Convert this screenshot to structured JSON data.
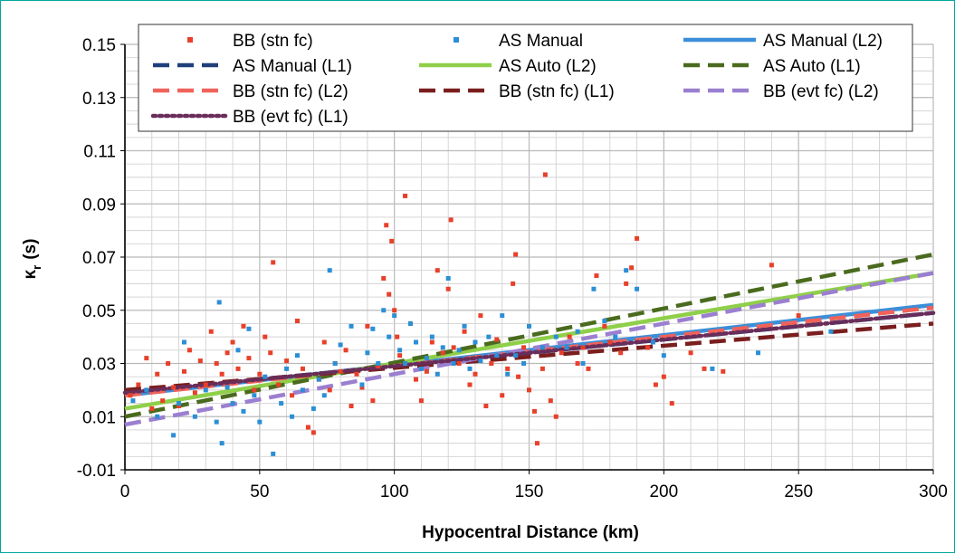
{
  "chart_data": {
    "type": "scatter",
    "title": "",
    "xlabel": "Hypocentral Distance (km)",
    "ylabel": "κ",
    "ylabel_sub": "r",
    "ylabel_unit": "(s)",
    "xlim": [
      0,
      300
    ],
    "ylim": [
      -0.01,
      0.15
    ],
    "xticks": [
      0,
      50,
      100,
      150,
      200,
      250,
      300
    ],
    "yticks": [
      "0.15",
      "0.13",
      "0.11",
      "0.09",
      "0.07",
      "0.05",
      "0.03",
      "0.01",
      "-0.01"
    ],
    "ytick_values": [
      0.15,
      0.13,
      0.11,
      0.09,
      0.07,
      0.05,
      0.03,
      0.01,
      -0.01
    ],
    "grid": true,
    "legend_position": "top",
    "series": [
      {
        "name": "BB (stn fc)",
        "kind": "scatter",
        "color": "#e8402a",
        "points": [
          [
            2,
            0.018
          ],
          [
            5,
            0.022
          ],
          [
            8,
            0.032
          ],
          [
            10,
            0.013
          ],
          [
            12,
            0.026
          ],
          [
            14,
            0.016
          ],
          [
            16,
            0.03
          ],
          [
            18,
            0.021
          ],
          [
            20,
            0.014
          ],
          [
            22,
            0.027
          ],
          [
            24,
            0.035
          ],
          [
            26,
            0.019
          ],
          [
            28,
            0.031
          ],
          [
            30,
            0.022
          ],
          [
            32,
            0.042
          ],
          [
            34,
            0.03
          ],
          [
            36,
            0.026
          ],
          [
            38,
            0.034
          ],
          [
            40,
            0.038
          ],
          [
            42,
            0.028
          ],
          [
            44,
            0.044
          ],
          [
            46,
            0.032
          ],
          [
            48,
            0.02
          ],
          [
            50,
            0.026
          ],
          [
            52,
            0.04
          ],
          [
            54,
            0.034
          ],
          [
            55,
            0.068
          ],
          [
            57,
            0.022
          ],
          [
            60,
            0.031
          ],
          [
            62,
            0.018
          ],
          [
            64,
            0.046
          ],
          [
            66,
            0.028
          ],
          [
            68,
            0.006
          ],
          [
            70,
            0.004
          ],
          [
            72,
            0.024
          ],
          [
            74,
            0.038
          ],
          [
            76,
            0.02
          ],
          [
            78,
            0.03
          ],
          [
            80,
            0.027
          ],
          [
            82,
            0.035
          ],
          [
            84,
            0.014
          ],
          [
            86,
            0.026
          ],
          [
            88,
            0.021
          ],
          [
            90,
            0.044
          ],
          [
            92,
            0.016
          ],
          [
            94,
            0.029
          ],
          [
            96,
            0.062
          ],
          [
            97,
            0.082
          ],
          [
            98,
            0.056
          ],
          [
            99,
            0.076
          ],
          [
            100,
            0.05
          ],
          [
            101,
            0.04
          ],
          [
            102,
            0.033
          ],
          [
            104,
            0.093
          ],
          [
            106,
            0.045
          ],
          [
            108,
            0.024
          ],
          [
            110,
            0.016
          ],
          [
            112,
            0.027
          ],
          [
            114,
            0.038
          ],
          [
            116,
            0.065
          ],
          [
            118,
            0.034
          ],
          [
            120,
            0.058
          ],
          [
            121,
            0.084
          ],
          [
            122,
            0.036
          ],
          [
            124,
            0.03
          ],
          [
            126,
            0.042
          ],
          [
            128,
            0.022
          ],
          [
            130,
            0.026
          ],
          [
            132,
            0.048
          ],
          [
            134,
            0.014
          ],
          [
            136,
            0.03
          ],
          [
            138,
            0.039
          ],
          [
            140,
            0.018
          ],
          [
            142,
            0.028
          ],
          [
            144,
            0.06
          ],
          [
            145,
            0.071
          ],
          [
            146,
            0.025
          ],
          [
            148,
            0.036
          ],
          [
            150,
            0.02
          ],
          [
            152,
            0.012
          ],
          [
            153,
            0.0
          ],
          [
            155,
            0.028
          ],
          [
            156,
            0.101
          ],
          [
            158,
            0.016
          ],
          [
            160,
            0.01
          ],
          [
            162,
            0.034
          ],
          [
            165,
            0.04
          ],
          [
            168,
            0.03
          ],
          [
            170,
            0.036
          ],
          [
            172,
            0.028
          ],
          [
            175,
            0.063
          ],
          [
            178,
            0.044
          ],
          [
            180,
            0.038
          ],
          [
            184,
            0.034
          ],
          [
            186,
            0.06
          ],
          [
            188,
            0.066
          ],
          [
            190,
            0.077
          ],
          [
            194,
            0.036
          ],
          [
            197,
            0.022
          ],
          [
            200,
            0.025
          ],
          [
            203,
            0.015
          ],
          [
            210,
            0.034
          ],
          [
            215,
            0.028
          ],
          [
            222,
            0.027
          ],
          [
            240,
            0.067
          ],
          [
            250,
            0.048
          ]
        ]
      },
      {
        "name": "AS Manual",
        "kind": "scatter",
        "color": "#2b8fd6",
        "points": [
          [
            3,
            0.016
          ],
          [
            8,
            0.02
          ],
          [
            12,
            0.01
          ],
          [
            18,
            0.003
          ],
          [
            20,
            0.015
          ],
          [
            22,
            0.038
          ],
          [
            26,
            0.01
          ],
          [
            30,
            0.02
          ],
          [
            34,
            0.008
          ],
          [
            35,
            0.053
          ],
          [
            36,
            0.0
          ],
          [
            38,
            0.021
          ],
          [
            40,
            0.015
          ],
          [
            42,
            0.035
          ],
          [
            44,
            0.012
          ],
          [
            46,
            0.043
          ],
          [
            48,
            0.018
          ],
          [
            50,
            0.008
          ],
          [
            52,
            0.025
          ],
          [
            55,
            -0.004
          ],
          [
            58,
            0.015
          ],
          [
            60,
            0.028
          ],
          [
            62,
            0.01
          ],
          [
            64,
            0.033
          ],
          [
            66,
            0.02
          ],
          [
            70,
            0.013
          ],
          [
            72,
            0.024
          ],
          [
            74,
            0.018
          ],
          [
            76,
            0.065
          ],
          [
            78,
            0.03
          ],
          [
            80,
            0.037
          ],
          [
            84,
            0.044
          ],
          [
            88,
            0.022
          ],
          [
            90,
            0.034
          ],
          [
            92,
            0.043
          ],
          [
            94,
            0.03
          ],
          [
            96,
            0.05
          ],
          [
            98,
            0.04
          ],
          [
            100,
            0.048
          ],
          [
            102,
            0.035
          ],
          [
            104,
            0.03
          ],
          [
            106,
            0.045
          ],
          [
            108,
            0.038
          ],
          [
            110,
            0.028
          ],
          [
            112,
            0.032
          ],
          [
            114,
            0.04
          ],
          [
            116,
            0.026
          ],
          [
            118,
            0.036
          ],
          [
            120,
            0.062
          ],
          [
            122,
            0.03
          ],
          [
            124,
            0.035
          ],
          [
            126,
            0.044
          ],
          [
            128,
            0.028
          ],
          [
            130,
            0.038
          ],
          [
            132,
            0.031
          ],
          [
            135,
            0.04
          ],
          [
            138,
            0.033
          ],
          [
            140,
            0.048
          ],
          [
            142,
            0.026
          ],
          [
            145,
            0.033
          ],
          [
            148,
            0.03
          ],
          [
            150,
            0.044
          ],
          [
            155,
            0.036
          ],
          [
            160,
            0.04
          ],
          [
            164,
            0.036
          ],
          [
            168,
            0.042
          ],
          [
            170,
            0.03
          ],
          [
            174,
            0.058
          ],
          [
            178,
            0.046
          ],
          [
            182,
            0.04
          ],
          [
            186,
            0.065
          ],
          [
            190,
            0.058
          ],
          [
            196,
            0.038
          ],
          [
            200,
            0.033
          ],
          [
            218,
            0.028
          ],
          [
            235,
            0.034
          ],
          [
            262,
            0.042
          ]
        ]
      },
      {
        "name": "AS Manual (L2)",
        "kind": "line",
        "style": "solid",
        "color": "#3b8fd9",
        "x": [
          0,
          300
        ],
        "y": [
          0.018,
          0.052
        ]
      },
      {
        "name": "AS Manual (L1)",
        "kind": "line",
        "style": "dashed",
        "color": "#1f3f7a",
        "x": [
          0,
          300
        ],
        "y": [
          0.019,
          0.049
        ]
      },
      {
        "name": "AS Auto (L2)",
        "kind": "line",
        "style": "solid",
        "color": "#8fcf4a",
        "x": [
          0,
          300
        ],
        "y": [
          0.013,
          0.064
        ]
      },
      {
        "name": "AS Auto (L1)",
        "kind": "line",
        "style": "dashed",
        "color": "#4a6b1e",
        "x": [
          0,
          300
        ],
        "y": [
          0.01,
          0.071
        ]
      },
      {
        "name": "BB (stn fc) (L2)",
        "kind": "line",
        "style": "dashed",
        "color": "#f0625a",
        "x": [
          0,
          300
        ],
        "y": [
          0.018,
          0.051
        ]
      },
      {
        "name": "BB (stn fc) (L1)",
        "kind": "line",
        "style": "dashed",
        "color": "#7a1e1e",
        "x": [
          0,
          300
        ],
        "y": [
          0.02,
          0.045
        ]
      },
      {
        "name": "BB (evt fc) (L2)",
        "kind": "line",
        "style": "dashed",
        "color": "#9b7fd0",
        "x": [
          0,
          300
        ],
        "y": [
          0.007,
          0.064
        ]
      },
      {
        "name": "BB (evt fc) (L1)",
        "kind": "line",
        "style": "dotted",
        "color": "#6a2d5a",
        "x": [
          0,
          300
        ],
        "y": [
          0.019,
          0.049
        ]
      }
    ]
  }
}
